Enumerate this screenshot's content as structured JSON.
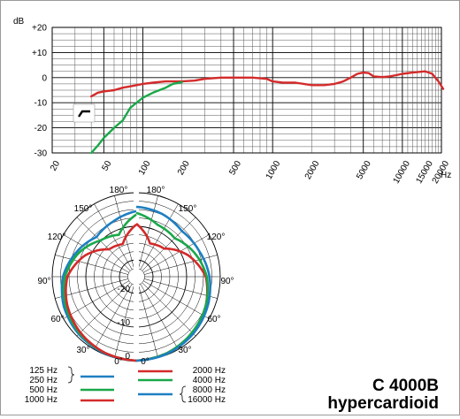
{
  "chart_data": [
    {
      "type": "line",
      "ylabel": "dB",
      "xlabel": "Hz",
      "x_scale": "log",
      "xlim": [
        20,
        20000
      ],
      "ylim": [
        -30,
        20
      ],
      "y_ticks": [
        "+20",
        "+10",
        "0",
        "-10",
        "-20",
        "-30"
      ],
      "y_tick_values": [
        20,
        10,
        0,
        -10,
        -20,
        -30
      ],
      "x_ticks": [
        "20",
        "50",
        "100",
        "200",
        "500",
        "1000",
        "2000",
        "5000",
        "10000",
        "15000",
        "20000"
      ],
      "x_tick_values": [
        20,
        50,
        100,
        200,
        500,
        1000,
        2000,
        5000,
        10000,
        15000,
        20000
      ],
      "grid": true,
      "bass_cut_symbol": "filter-icon",
      "series": [
        {
          "color": "#d42a2a",
          "points": [
            [
              40,
              -7.5
            ],
            [
              45,
              -6
            ],
            [
              50,
              -5.5
            ],
            [
              60,
              -5
            ],
            [
              70,
              -4
            ],
            [
              80,
              -3.5
            ],
            [
              100,
              -2.5
            ],
            [
              120,
              -2
            ],
            [
              150,
              -1.5
            ],
            [
              200,
              -1.5
            ],
            [
              250,
              -1.2
            ],
            [
              300,
              -0.5
            ],
            [
              400,
              0
            ],
            [
              500,
              0
            ],
            [
              700,
              0
            ],
            [
              900,
              -0.5
            ],
            [
              1000,
              -1.5
            ],
            [
              1200,
              -2
            ],
            [
              1500,
              -2
            ],
            [
              2000,
              -3
            ],
            [
              2500,
              -3
            ],
            [
              3000,
              -2.5
            ],
            [
              3500,
              -1.5
            ],
            [
              4000,
              0
            ],
            [
              4500,
              1.5
            ],
            [
              5000,
              2
            ],
            [
              5500,
              1.8
            ],
            [
              6000,
              0.5
            ],
            [
              7000,
              0.2
            ],
            [
              8000,
              0.5
            ],
            [
              9000,
              1
            ],
            [
              10000,
              1.5
            ],
            [
              12000,
              2
            ],
            [
              15000,
              2.5
            ],
            [
              17000,
              1.5
            ],
            [
              19000,
              -1.5
            ],
            [
              21000,
              -4.5
            ]
          ]
        },
        {
          "color": "#1aa84a",
          "points": [
            [
              40,
              -32
            ],
            [
              45,
              -27
            ],
            [
              50,
              -24
            ],
            [
              60,
              -20
            ],
            [
              70,
              -17
            ],
            [
              80,
              -12
            ],
            [
              100,
              -8
            ],
            [
              120,
              -6
            ],
            [
              150,
              -4
            ],
            [
              170,
              -2.5
            ],
            [
              200,
              -1.8
            ]
          ]
        }
      ]
    },
    {
      "type": "polar",
      "angle_labels": [
        "180°",
        "150°",
        "120°",
        "90°",
        "60°",
        "30°",
        "0°"
      ],
      "angle_values": [
        180,
        150,
        120,
        90,
        60,
        30,
        0
      ],
      "radial_labels": [
        "-20",
        "-10",
        "0"
      ],
      "radial_values": [
        -20,
        -10,
        0
      ],
      "rlim": [
        -25,
        0
      ],
      "left_series": [
        {
          "name": "125 Hz",
          "color": "#1e7fc2",
          "group": "125-250 Hz",
          "values_db": [
            0,
            -0.3,
            -0.8,
            -1.7,
            -3.2,
            -5.8,
            -8.3,
            -7.2,
            -5.5
          ]
        },
        {
          "name": "500 Hz",
          "color": "#1aa84a",
          "values_db": [
            0,
            -0.5,
            -1.2,
            -2.3,
            -3.8,
            -6.5,
            -9.8,
            -11.5,
            -6.5
          ]
        },
        {
          "name": "1000 Hz",
          "color": "#d42a2a",
          "values_db": [
            0,
            -0.5,
            -1.5,
            -2.8,
            -4.5,
            -8.5,
            -13.5,
            -14.5,
            -9.5
          ]
        }
      ],
      "right_series": [
        {
          "name": "2000 Hz",
          "color": "#d42a2a",
          "values_db": [
            0,
            -0.5,
            -1.4,
            -2.6,
            -4.3,
            -8.3,
            -13.2,
            -14.3,
            -9.2
          ]
        },
        {
          "name": "4000 Hz",
          "color": "#1aa84a",
          "values_db": [
            0,
            -0.5,
            -1.5,
            -2.6,
            -4.0,
            -6.3,
            -8.8,
            -8.3,
            -6.0
          ]
        },
        {
          "name": "8000 Hz",
          "color": "#1e7fc2",
          "group": "8000-16000 Hz",
          "values_db": [
            0,
            -0.3,
            -1.0,
            -2.0,
            -3.2,
            -4.8,
            -5.8,
            -4.8,
            -4.2
          ]
        }
      ],
      "angles_deg": [
        0,
        22.5,
        45,
        67.5,
        90,
        112.5,
        135,
        157.5,
        180
      ]
    }
  ],
  "legend": {
    "left": [
      {
        "label": "125 Hz",
        "color": null
      },
      {
        "label": "250 Hz",
        "color": "#1e7fc2"
      },
      {
        "label": "500 Hz",
        "color": "#1aa84a"
      },
      {
        "label": "1000 Hz",
        "color": "#d42a2a"
      }
    ],
    "right": [
      {
        "label": "2000 Hz",
        "color": "#d42a2a"
      },
      {
        "label": "4000 Hz",
        "color": "#1aa84a"
      },
      {
        "label": "8000 Hz",
        "color": "#1e7fc2"
      },
      {
        "label": "16000 Hz",
        "color": null
      }
    ]
  },
  "model": {
    "name": "C 4000B",
    "pattern": "hypercardioid"
  }
}
